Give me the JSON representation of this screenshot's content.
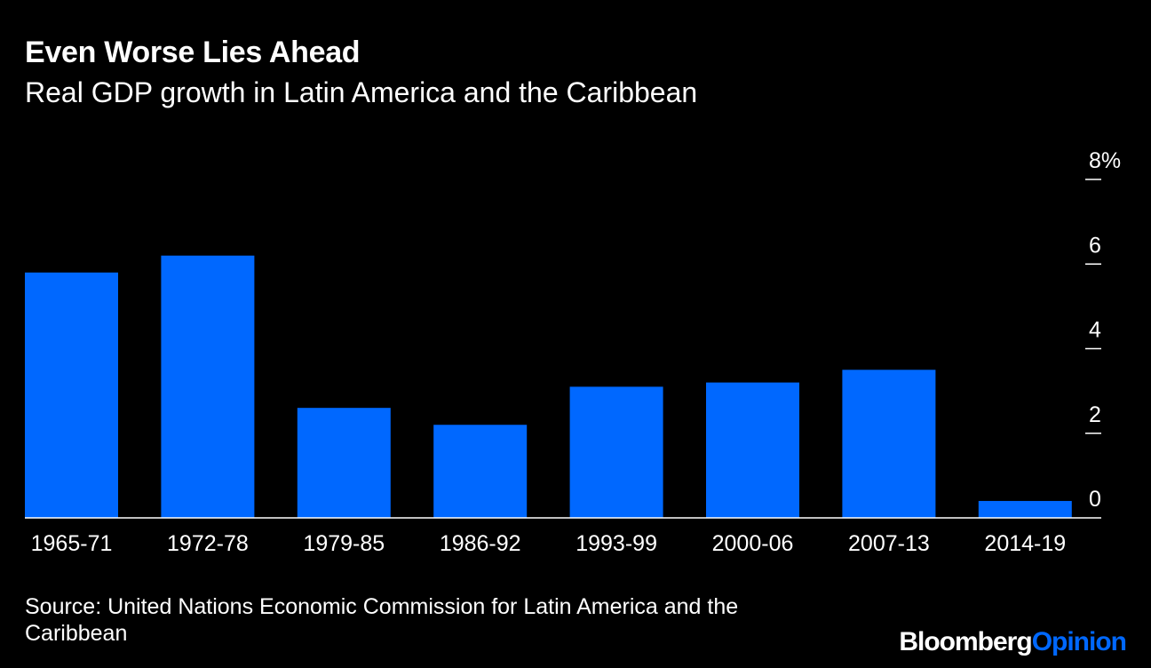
{
  "chart_data": {
    "type": "bar",
    "title": "Even Worse Lies Ahead",
    "subtitle": "Real GDP growth in Latin America and the Caribbean",
    "categories": [
      "1965-71",
      "1972-78",
      "1979-85",
      "1986-92",
      "1993-99",
      "2000-06",
      "2007-13",
      "2014-19"
    ],
    "values": [
      5.8,
      6.2,
      2.6,
      2.2,
      3.1,
      3.2,
      3.5,
      0.4
    ],
    "ylim": [
      0,
      8
    ],
    "yticks": [
      0,
      2,
      4,
      6,
      8
    ],
    "ytick_labels": [
      "0",
      "2",
      "4",
      "6",
      "8%"
    ],
    "y_axis_position": "right",
    "bar_color": "#0068ff",
    "background_color": "#000000",
    "grid": false
  },
  "footer": {
    "source": "Source: United Nations Economic Commission for Latin America and the Caribbean",
    "brand_primary": "Bloomberg",
    "brand_secondary": "Opinion"
  }
}
